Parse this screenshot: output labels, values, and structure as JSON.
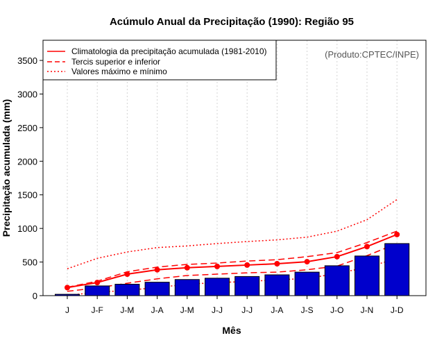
{
  "chart_data": {
    "type": "bar",
    "title": "Acúmulo Anual da Precipitação (1990): Região 95",
    "xlabel": "Mês",
    "ylabel": "Precipitação acumulada (mm)",
    "credit": "(Produto:CPTEC/INPE)",
    "ylim": [
      0,
      3800
    ],
    "yticks": [
      0,
      500,
      1000,
      1500,
      2000,
      2500,
      3000,
      3500
    ],
    "grid": true,
    "legend_position": "top-left",
    "categories": [
      "J",
      "J-F",
      "J-M",
      "J-A",
      "J-M",
      "J-J",
      "J-J",
      "J-A",
      "J-S",
      "J-O",
      "J-N",
      "J-D"
    ],
    "values": [
      20,
      145,
      170,
      200,
      240,
      260,
      285,
      310,
      350,
      445,
      590,
      775
    ],
    "bar_color": "#0000cc",
    "series": [
      {
        "name": "Climatologia da precipitação acumulada (1981-2010)",
        "style": "solid",
        "color": "#ff0000",
        "values": [
          120,
          195,
          320,
          385,
          415,
          435,
          455,
          475,
          505,
          580,
          730,
          910
        ]
      },
      {
        "name": "Tercis superior e inferior",
        "style": "dashed",
        "color": "#ff0000",
        "upper": [
          125,
          215,
          355,
          425,
          465,
          485,
          515,
          535,
          580,
          640,
          790,
          960
        ],
        "lower": [
          65,
          115,
          185,
          250,
          300,
          320,
          340,
          350,
          385,
          440,
          595,
          775
        ]
      },
      {
        "name": "Valores máximo e mínimo",
        "style": "dotted",
        "color": "#ff0000",
        "upper": [
          400,
          555,
          650,
          715,
          740,
          775,
          805,
          830,
          870,
          960,
          1130,
          1430
        ],
        "lower": [
          5,
          50,
          80,
          120,
          170,
          195,
          210,
          235,
          255,
          330,
          420,
          555
        ]
      }
    ]
  }
}
